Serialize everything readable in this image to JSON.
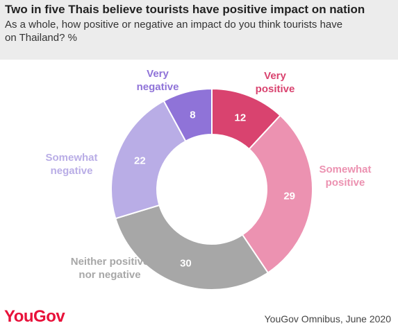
{
  "header": {
    "title": "Two in five Thais believe tourists have positive impact on nation",
    "subtitle": "As a whole, how positive or negative an impact do you think tourists have on Thailand? %"
  },
  "footer": {
    "logo": "YouGov",
    "source": "YouGov Omnibus, June 2020"
  },
  "chart_data": {
    "type": "pie",
    "donut": true,
    "categories": [
      "Very positive",
      "Somewhat positive",
      "Neither positive nor negative",
      "Somewhat negative",
      "Very negative"
    ],
    "values": [
      12,
      29,
      30,
      22,
      8
    ],
    "colors": [
      "#d9436f",
      "#ec92b1",
      "#a7a7a7",
      "#b9ade6",
      "#8f73d8"
    ],
    "label_colors": [
      "#d9436f",
      "#ec92b1",
      "#a7a7a7",
      "#b9ade6",
      "#8f73d8"
    ],
    "label_lines": [
      [
        "Very",
        "positive"
      ],
      [
        "Somewhat",
        "positive"
      ],
      [
        "Neither positive",
        "nor negative"
      ],
      [
        "Somewhat",
        "negative"
      ],
      [
        "Very",
        "negative"
      ]
    ]
  }
}
